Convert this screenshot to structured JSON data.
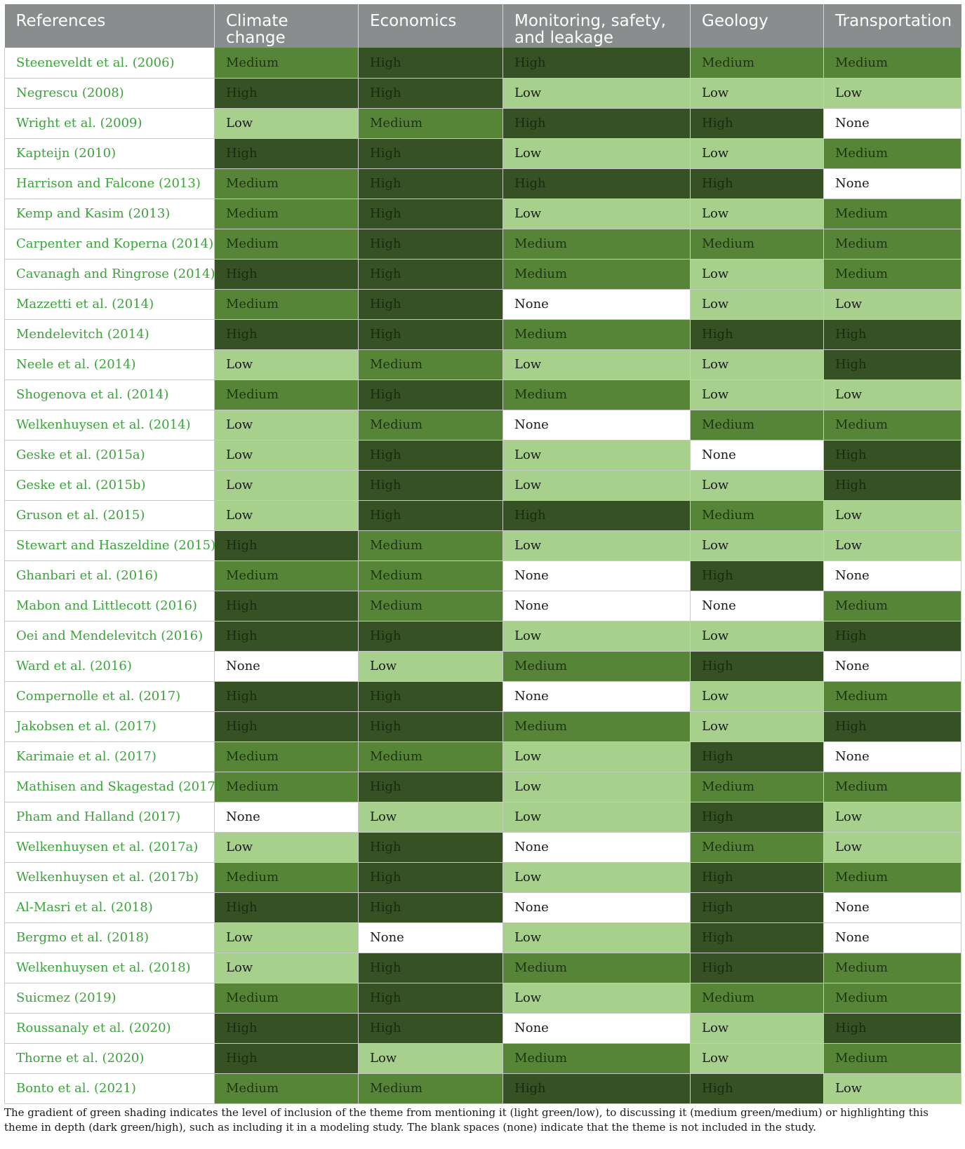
{
  "table": {
    "headers": [
      "References",
      "Climate change",
      "Economics",
      "Monitoring, safety, and leakage",
      "Geology",
      "Transportation"
    ],
    "rows": [
      {
        "ref": "Steeneveldt et al. (2006)",
        "levels": [
          "Medium",
          "High",
          "High",
          "Medium",
          "Medium"
        ]
      },
      {
        "ref": "Negrescu (2008)",
        "levels": [
          "High",
          "High",
          "Low",
          "Low",
          "Low"
        ]
      },
      {
        "ref": "Wright et al. (2009)",
        "levels": [
          "Low",
          "Medium",
          "High",
          "High",
          "None"
        ]
      },
      {
        "ref": "Kapteijn (2010)",
        "levels": [
          "High",
          "High",
          "Low",
          "Low",
          "Medium"
        ]
      },
      {
        "ref": "Harrison and Falcone (2013)",
        "levels": [
          "Medium",
          "High",
          "High",
          "High",
          "None"
        ]
      },
      {
        "ref": "Kemp and Kasim (2013)",
        "levels": [
          "Medium",
          "High",
          "Low",
          "Low",
          "Medium"
        ]
      },
      {
        "ref": "Carpenter and Koperna (2014)",
        "levels": [
          "Medium",
          "High",
          "Medium",
          "Medium",
          "Medium"
        ]
      },
      {
        "ref": "Cavanagh and Ringrose (2014)",
        "levels": [
          "High",
          "High",
          "Medium",
          "Low",
          "Medium"
        ]
      },
      {
        "ref": "Mazzetti et al. (2014)",
        "levels": [
          "Medium",
          "High",
          "None",
          "Low",
          "Low"
        ]
      },
      {
        "ref": "Mendelevitch (2014)",
        "levels": [
          "High",
          "High",
          "Medium",
          "High",
          "High"
        ]
      },
      {
        "ref": "Neele et al. (2014)",
        "levels": [
          "Low",
          "Medium",
          "Low",
          "Low",
          "High"
        ]
      },
      {
        "ref": "Shogenova et al. (2014)",
        "levels": [
          "Medium",
          "High",
          "Medium",
          "Low",
          "Low"
        ]
      },
      {
        "ref": "Welkenhuysen et al. (2014)",
        "levels": [
          "Low",
          "Medium",
          "None",
          "Medium",
          "Medium"
        ]
      },
      {
        "ref": "Geske et al. (2015a)",
        "levels": [
          "Low",
          "High",
          "Low",
          "None",
          "High"
        ]
      },
      {
        "ref": "Geske et al. (2015b)",
        "levels": [
          "Low",
          "High",
          "Low",
          "Low",
          "High"
        ]
      },
      {
        "ref": "Gruson et al. (2015)",
        "levels": [
          "Low",
          "High",
          "High",
          "Medium",
          "Low"
        ]
      },
      {
        "ref": "Stewart and Haszeldine (2015)",
        "levels": [
          "High",
          "Medium",
          "Low",
          "Low",
          "Low"
        ]
      },
      {
        "ref": "Ghanbari et al. (2016)",
        "levels": [
          "Medium",
          "Medium",
          "None",
          "High",
          "None"
        ]
      },
      {
        "ref": "Mabon and Littlecott (2016)",
        "levels": [
          "High",
          "Medium",
          "None",
          "None",
          "Medium"
        ]
      },
      {
        "ref": "Oei and Mendelevitch (2016)",
        "levels": [
          "High",
          "High",
          "Low",
          "Low",
          "High"
        ]
      },
      {
        "ref": "Ward et al. (2016)",
        "levels": [
          "None",
          "Low",
          "Medium",
          "High",
          "None"
        ]
      },
      {
        "ref": "Compernolle et al. (2017)",
        "levels": [
          "High",
          "High",
          "None",
          "Low",
          "Medium"
        ]
      },
      {
        "ref": "Jakobsen et al. (2017)",
        "levels": [
          "High",
          "High",
          "Medium",
          "Low",
          "High"
        ]
      },
      {
        "ref": "Karimaie et al. (2017)",
        "levels": [
          "Medium",
          "Medium",
          "Low",
          "High",
          "None"
        ]
      },
      {
        "ref": "Mathisen and Skagestad (2017)",
        "levels": [
          "Medium",
          "High",
          "Low",
          "Medium",
          "Medium"
        ]
      },
      {
        "ref": "Pham and Halland (2017)",
        "levels": [
          "None",
          "Low",
          "Low",
          "High",
          "Low"
        ]
      },
      {
        "ref": "Welkenhuysen et al. (2017a)",
        "levels": [
          "Low",
          "High",
          "None",
          "Medium",
          "Low"
        ]
      },
      {
        "ref": "Welkenhuysen et al. (2017b)",
        "levels": [
          "Medium",
          "High",
          "Low",
          "High",
          "Medium"
        ]
      },
      {
        "ref": "Al-Masri et al. (2018)",
        "levels": [
          "High",
          "High",
          "None",
          "High",
          "None"
        ]
      },
      {
        "ref": "Bergmo et al. (2018)",
        "levels": [
          "Low",
          "None",
          "Low",
          "High",
          "None"
        ]
      },
      {
        "ref": "Welkenhuysen et al. (2018)",
        "levels": [
          "Low",
          "High",
          "Medium",
          "High",
          "Medium"
        ]
      },
      {
        "ref": "Suicmez (2019)",
        "levels": [
          "Medium",
          "High",
          "Low",
          "Medium",
          "Medium"
        ]
      },
      {
        "ref": "Roussanaly et al. (2020)",
        "levels": [
          "High",
          "High",
          "None",
          "Low",
          "High"
        ]
      },
      {
        "ref": "Thorne et al. (2020)",
        "levels": [
          "High",
          "Low",
          "Medium",
          "Low",
          "Medium"
        ]
      },
      {
        "ref": "Bonto et al. (2021)",
        "levels": [
          "Medium",
          "Medium",
          "High",
          "High",
          "Low"
        ]
      }
    ]
  },
  "footnote": "The gradient of green shading indicates the level of inclusion of the theme from mentioning it (light green/low), to discussing it (medium green/medium) or highlighting this theme in depth (dark green/high), such as including it in a modeling study. The blank spaces (none) indicate that the theme is not included in the study.",
  "colors": {
    "header_bg": "#8a8d8e",
    "high": "#365123",
    "medium": "#568537",
    "low": "#a8d08d",
    "none": "#ffffff",
    "reference_text": "#3aa33a"
  }
}
